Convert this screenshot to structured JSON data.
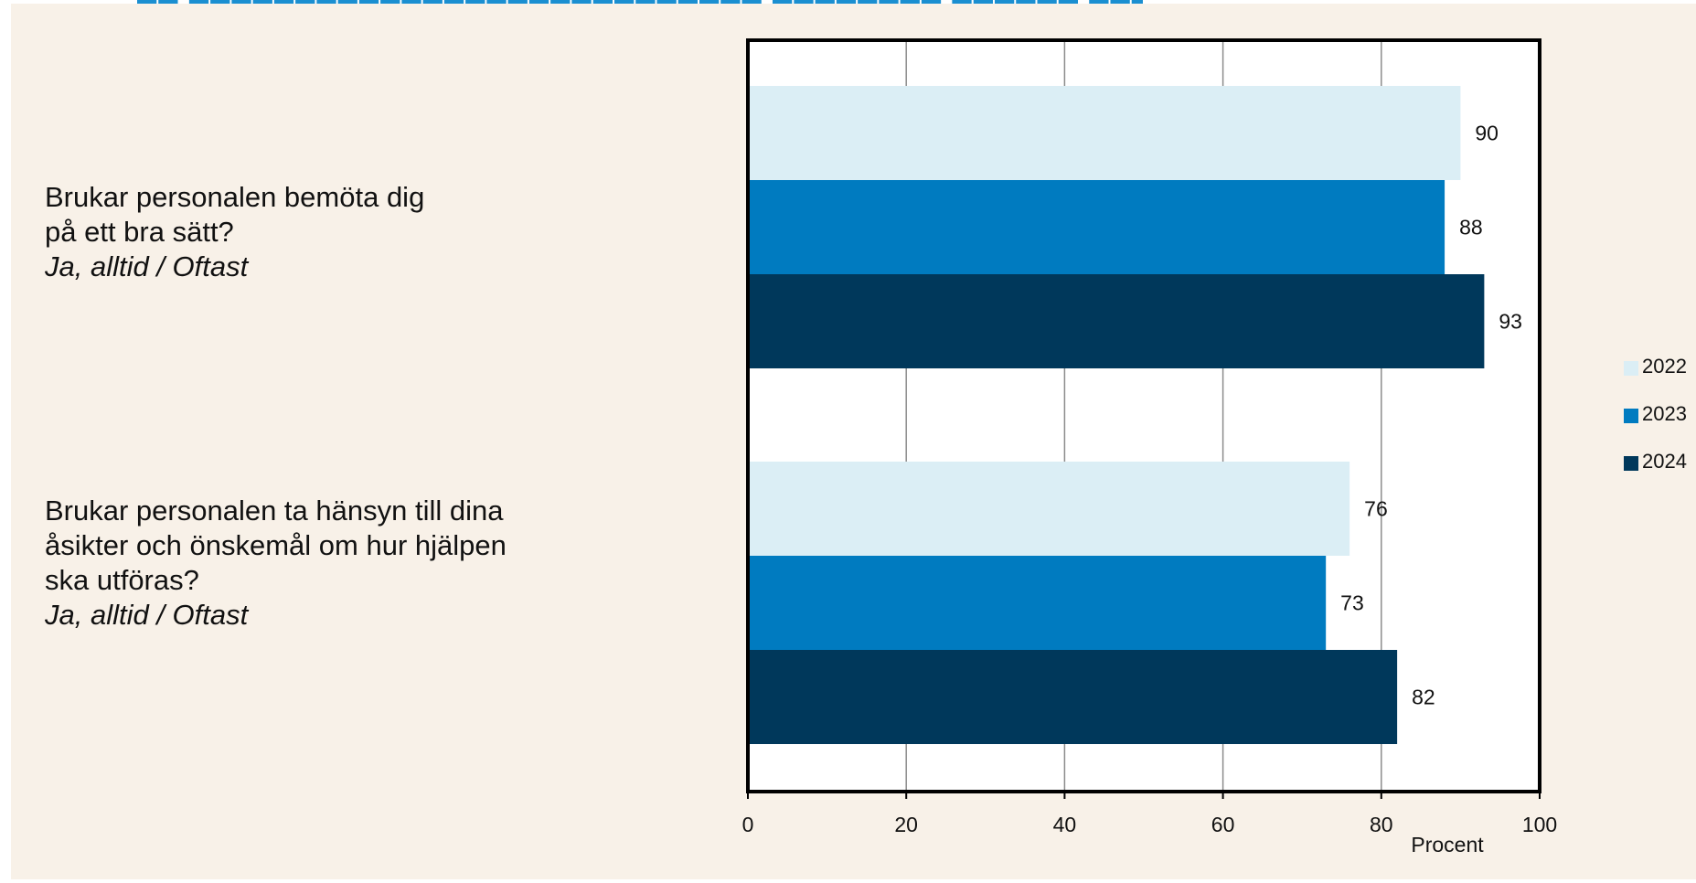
{
  "chart_data": {
    "type": "bar",
    "orientation": "horizontal",
    "categories": [
      {
        "lines": [
          "Brukar personalen bemöta dig",
          "på ett bra sätt?"
        ],
        "qualifier": "Ja, alltid / Oftast"
      },
      {
        "lines": [
          "Brukar personalen ta hänsyn till dina",
          "åsikter och önskemål om hur hjälpen",
          "ska utföras?"
        ],
        "qualifier": "Ja, alltid / Oftast"
      }
    ],
    "series": [
      {
        "name": "2022",
        "color": "#dbeef5",
        "values": [
          90,
          76
        ]
      },
      {
        "name": "2023",
        "color": "#007bc0",
        "values": [
          88,
          73
        ]
      },
      {
        "name": "2024",
        "color": "#00385b",
        "values": [
          93,
          82
        ]
      }
    ],
    "xlabel": "Procent",
    "xlim": [
      0,
      100
    ],
    "xticks": [
      0,
      20,
      40,
      60,
      80,
      100
    ],
    "grid": "vertical",
    "legend": "right",
    "data_labels": true
  }
}
